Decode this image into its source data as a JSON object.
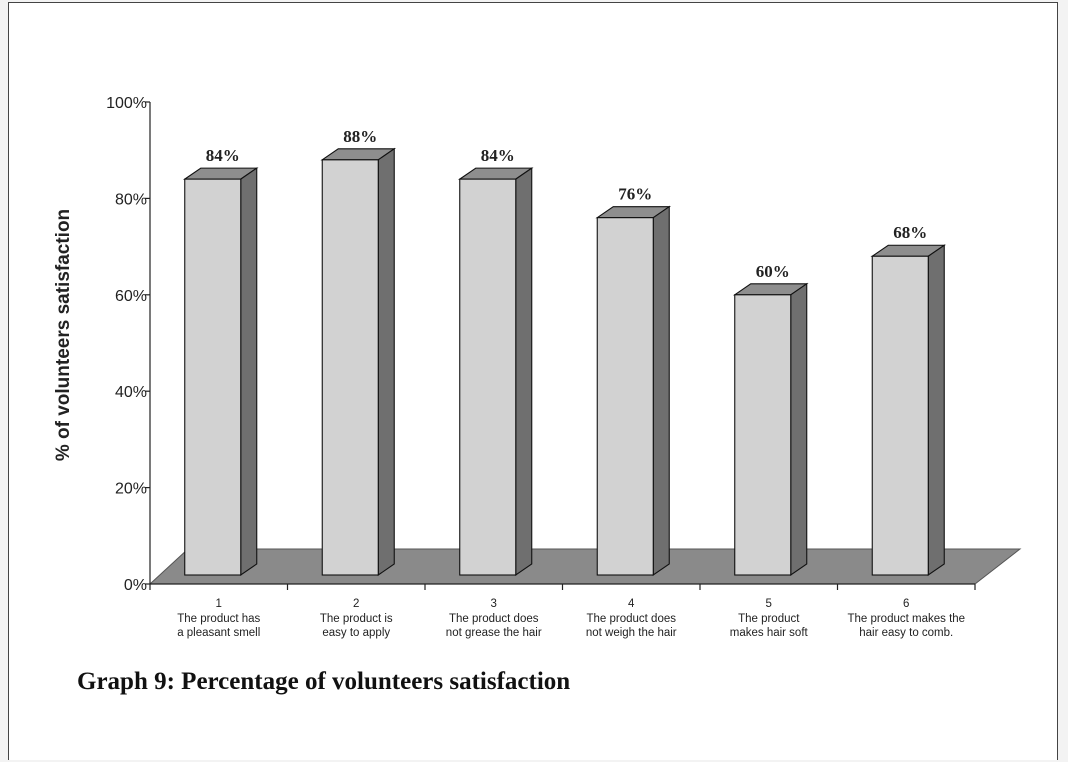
{
  "caption": "Graph 9: Percentage of volunteers satisfaction",
  "chart_data": {
    "type": "bar",
    "style": "3d-column",
    "ylabel": "% of volunteers satisfaction",
    "ylim": [
      0,
      100
    ],
    "yticks": [
      "0%",
      "20%",
      "40%",
      "60%",
      "80%",
      "100%"
    ],
    "grid": false,
    "categories": [
      {
        "number": "1",
        "line1": "The product has",
        "line2": "a pleasant smell"
      },
      {
        "number": "2",
        "line1": "The product is",
        "line2": "easy to apply"
      },
      {
        "number": "3",
        "line1": "The product does",
        "line2": "not grease the hair"
      },
      {
        "number": "4",
        "line1": "The product does",
        "line2": "not weigh the hair"
      },
      {
        "number": "5",
        "line1": "The product",
        "line2": "makes hair soft"
      },
      {
        "number": "6",
        "line1": "The product makes the",
        "line2": "hair easy to comb."
      }
    ],
    "values": [
      84,
      88,
      84,
      76,
      60,
      68
    ],
    "data_labels": [
      "84%",
      "88%",
      "84%",
      "76%",
      "60%",
      "68%"
    ],
    "colors": {
      "bar_front": "#d2d2d2",
      "bar_side": "#6f6f6f",
      "bar_top": "#8e8e8e",
      "floor": "#8a8a8a",
      "axis": "#222222"
    }
  }
}
